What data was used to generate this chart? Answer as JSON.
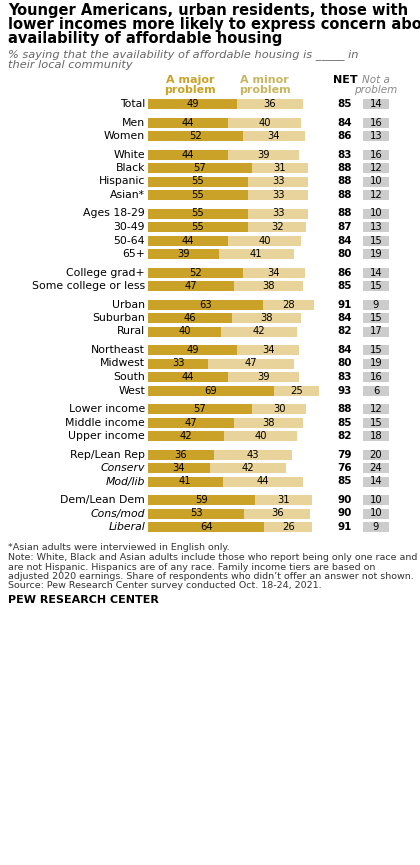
{
  "title_lines": [
    "Younger Americans, urban residents, those with",
    "lower incomes more likely to express concern about",
    "availability of affordable housing"
  ],
  "subtitle_lines": [
    "% saying that the availability of affordable housing is _____ in",
    "their local community"
  ],
  "col_header_major": "A major\nproblem",
  "col_header_minor": "A minor\nproblem",
  "col_header_net": "NET",
  "col_header_not": "Not a\nproblem",
  "color_major": "#C9A227",
  "color_minor": "#E8D49A",
  "color_not": "#CCCCCC",
  "rows": [
    {
      "label": "Total",
      "major": 49,
      "minor": 36,
      "net": 85,
      "not": 14,
      "italic": false,
      "spacer": false
    },
    {
      "label": "",
      "major": 0,
      "minor": 0,
      "net": 0,
      "not": 0,
      "italic": false,
      "spacer": true
    },
    {
      "label": "Men",
      "major": 44,
      "minor": 40,
      "net": 84,
      "not": 16,
      "italic": false,
      "spacer": false
    },
    {
      "label": "Women",
      "major": 52,
      "minor": 34,
      "net": 86,
      "not": 13,
      "italic": false,
      "spacer": false
    },
    {
      "label": "",
      "major": 0,
      "minor": 0,
      "net": 0,
      "not": 0,
      "italic": false,
      "spacer": true
    },
    {
      "label": "White",
      "major": 44,
      "minor": 39,
      "net": 83,
      "not": 16,
      "italic": false,
      "spacer": false
    },
    {
      "label": "Black",
      "major": 57,
      "minor": 31,
      "net": 88,
      "not": 12,
      "italic": false,
      "spacer": false
    },
    {
      "label": "Hispanic",
      "major": 55,
      "minor": 33,
      "net": 88,
      "not": 10,
      "italic": false,
      "spacer": false
    },
    {
      "label": "Asian*",
      "major": 55,
      "minor": 33,
      "net": 88,
      "not": 12,
      "italic": false,
      "spacer": false
    },
    {
      "label": "",
      "major": 0,
      "minor": 0,
      "net": 0,
      "not": 0,
      "italic": false,
      "spacer": true
    },
    {
      "label": "Ages 18-29",
      "major": 55,
      "minor": 33,
      "net": 88,
      "not": 10,
      "italic": false,
      "spacer": false
    },
    {
      "label": "30-49",
      "major": 55,
      "minor": 32,
      "net": 87,
      "not": 13,
      "italic": false,
      "spacer": false
    },
    {
      "label": "50-64",
      "major": 44,
      "minor": 40,
      "net": 84,
      "not": 15,
      "italic": false,
      "spacer": false
    },
    {
      "label": "65+",
      "major": 39,
      "minor": 41,
      "net": 80,
      "not": 19,
      "italic": false,
      "spacer": false
    },
    {
      "label": "",
      "major": 0,
      "minor": 0,
      "net": 0,
      "not": 0,
      "italic": false,
      "spacer": true
    },
    {
      "label": "College grad+",
      "major": 52,
      "minor": 34,
      "net": 86,
      "not": 14,
      "italic": false,
      "spacer": false
    },
    {
      "label": "Some college or less",
      "major": 47,
      "minor": 38,
      "net": 85,
      "not": 15,
      "italic": false,
      "spacer": false
    },
    {
      "label": "",
      "major": 0,
      "minor": 0,
      "net": 0,
      "not": 0,
      "italic": false,
      "spacer": true
    },
    {
      "label": "Urban",
      "major": 63,
      "minor": 28,
      "net": 91,
      "not": 9,
      "italic": false,
      "spacer": false
    },
    {
      "label": "Suburban",
      "major": 46,
      "minor": 38,
      "net": 84,
      "not": 15,
      "italic": false,
      "spacer": false
    },
    {
      "label": "Rural",
      "major": 40,
      "minor": 42,
      "net": 82,
      "not": 17,
      "italic": false,
      "spacer": false
    },
    {
      "label": "",
      "major": 0,
      "minor": 0,
      "net": 0,
      "not": 0,
      "italic": false,
      "spacer": true
    },
    {
      "label": "Northeast",
      "major": 49,
      "minor": 34,
      "net": 84,
      "not": 15,
      "italic": false,
      "spacer": false
    },
    {
      "label": "Midwest",
      "major": 33,
      "minor": 47,
      "net": 80,
      "not": 19,
      "italic": false,
      "spacer": false
    },
    {
      "label": "South",
      "major": 44,
      "minor": 39,
      "net": 83,
      "not": 16,
      "italic": false,
      "spacer": false
    },
    {
      "label": "West",
      "major": 69,
      "minor": 25,
      "net": 93,
      "not": 6,
      "italic": false,
      "spacer": false
    },
    {
      "label": "",
      "major": 0,
      "minor": 0,
      "net": 0,
      "not": 0,
      "italic": false,
      "spacer": true
    },
    {
      "label": "Lower income",
      "major": 57,
      "minor": 30,
      "net": 88,
      "not": 12,
      "italic": false,
      "spacer": false
    },
    {
      "label": "Middle income",
      "major": 47,
      "minor": 38,
      "net": 85,
      "not": 15,
      "italic": false,
      "spacer": false
    },
    {
      "label": "Upper income",
      "major": 42,
      "minor": 40,
      "net": 82,
      "not": 18,
      "italic": false,
      "spacer": false
    },
    {
      "label": "",
      "major": 0,
      "minor": 0,
      "net": 0,
      "not": 0,
      "italic": false,
      "spacer": true
    },
    {
      "label": "Rep/Lean Rep",
      "major": 36,
      "minor": 43,
      "net": 79,
      "not": 20,
      "italic": false,
      "spacer": false
    },
    {
      "label": "Conserv",
      "major": 34,
      "minor": 42,
      "net": 76,
      "not": 24,
      "italic": true,
      "spacer": false
    },
    {
      "label": "Mod/lib",
      "major": 41,
      "minor": 44,
      "net": 85,
      "not": 14,
      "italic": true,
      "spacer": false
    },
    {
      "label": "",
      "major": 0,
      "minor": 0,
      "net": 0,
      "not": 0,
      "italic": false,
      "spacer": true
    },
    {
      "label": "Dem/Lean Dem",
      "major": 59,
      "minor": 31,
      "net": 90,
      "not": 10,
      "italic": false,
      "spacer": false
    },
    {
      "label": "Cons/mod",
      "major": 53,
      "minor": 36,
      "net": 90,
      "not": 10,
      "italic": true,
      "spacer": false
    },
    {
      "label": "Liberal",
      "major": 64,
      "minor": 26,
      "net": 91,
      "not": 9,
      "italic": true,
      "spacer": false
    }
  ],
  "footnote_lines": [
    "*Asian adults were interviewed in English only.",
    "Note: White, Black and Asian adults include those who report being only one race and",
    "are not Hispanic. Hispanics are of any race. Family income tiers are based on",
    "adjusted 2020 earnings. Share of respondents who didn’t offer an answer not shown.",
    "Source: Pew Research Center survey conducted Oct. 18-24, 2021."
  ],
  "source_label": "PEW RESEARCH CENTER"
}
